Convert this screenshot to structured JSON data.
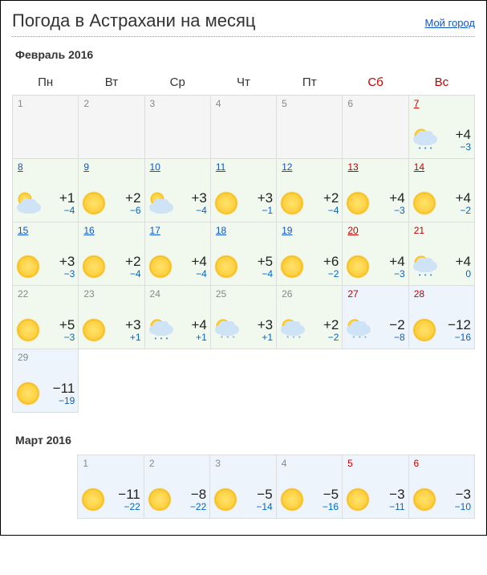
{
  "header": {
    "title": "Погода в Астрахани на месяц",
    "my_city": "Мой город"
  },
  "weekdays": [
    "Пн",
    "Вт",
    "Ср",
    "Чт",
    "Пт",
    "Сб",
    "Вс"
  ],
  "months": [
    {
      "title": "Февраль 2016",
      "leading_blanks": 0,
      "days": [
        {
          "d": "1",
          "empty": true
        },
        {
          "d": "2",
          "empty": true
        },
        {
          "d": "3",
          "empty": true
        },
        {
          "d": "4",
          "empty": true
        },
        {
          "d": "5",
          "empty": true
        },
        {
          "d": "6",
          "empty": true
        },
        {
          "d": "7",
          "link": true,
          "weekend": true,
          "bg": "green",
          "icon": "rain",
          "hi": "+4",
          "lo": "−3"
        },
        {
          "d": "8",
          "link": true,
          "bg": "green",
          "icon": "partly",
          "hi": "+1",
          "lo": "−4"
        },
        {
          "d": "9",
          "link": true,
          "bg": "green",
          "icon": "sun",
          "hi": "+2",
          "lo": "−6"
        },
        {
          "d": "10",
          "link": true,
          "bg": "green",
          "icon": "partly",
          "hi": "+3",
          "lo": "−4"
        },
        {
          "d": "11",
          "link": true,
          "bg": "green",
          "icon": "sun",
          "hi": "+3",
          "lo": "−1"
        },
        {
          "d": "12",
          "link": true,
          "bg": "green",
          "icon": "sun",
          "hi": "+2",
          "lo": "−4"
        },
        {
          "d": "13",
          "link": true,
          "weekend": true,
          "bg": "green",
          "icon": "sun",
          "hi": "+4",
          "lo": "−3"
        },
        {
          "d": "14",
          "link": true,
          "weekend": true,
          "bg": "green",
          "icon": "sun",
          "hi": "+4",
          "lo": "−2"
        },
        {
          "d": "15",
          "link": true,
          "bg": "green",
          "icon": "sun",
          "hi": "+3",
          "lo": "−3"
        },
        {
          "d": "16",
          "link": true,
          "bg": "green",
          "icon": "sun",
          "hi": "+2",
          "lo": "−4"
        },
        {
          "d": "17",
          "link": true,
          "bg": "green",
          "icon": "sun",
          "hi": "+4",
          "lo": "−4"
        },
        {
          "d": "18",
          "link": true,
          "bg": "green",
          "icon": "sun",
          "hi": "+5",
          "lo": "−4"
        },
        {
          "d": "19",
          "link": true,
          "bg": "green",
          "icon": "sun",
          "hi": "+6",
          "lo": "−2"
        },
        {
          "d": "20",
          "link": true,
          "weekend": true,
          "bg": "green",
          "icon": "sun",
          "hi": "+4",
          "lo": "−3"
        },
        {
          "d": "21",
          "weekend": true,
          "bg": "green",
          "icon": "rain",
          "hi": "+4",
          "lo": "0"
        },
        {
          "d": "22",
          "bg": "green",
          "icon": "sun",
          "hi": "+5",
          "lo": "−3"
        },
        {
          "d": "23",
          "bg": "green",
          "icon": "sun",
          "hi": "+3",
          "lo": "+1"
        },
        {
          "d": "24",
          "bg": "green",
          "icon": "rain",
          "hi": "+4",
          "lo": "+1"
        },
        {
          "d": "25",
          "bg": "green",
          "icon": "snow",
          "hi": "+3",
          "lo": "+1"
        },
        {
          "d": "26",
          "bg": "green",
          "icon": "snow",
          "hi": "+2",
          "lo": "−2"
        },
        {
          "d": "27",
          "weekend": true,
          "bg": "blue",
          "icon": "snow",
          "hi": "−2",
          "lo": "−8"
        },
        {
          "d": "28",
          "weekend": true,
          "bg": "blue",
          "icon": "sun",
          "hi": "−12",
          "lo": "−16"
        },
        {
          "d": "29",
          "bg": "blue",
          "icon": "sun",
          "hi": "−11",
          "lo": "−19"
        }
      ]
    },
    {
      "title": "Март 2016",
      "leading_blanks": 1,
      "noheader_row": true,
      "days": [
        {
          "d": "1",
          "bg": "blue",
          "icon": "sun",
          "hi": "−11",
          "lo": "−22"
        },
        {
          "d": "2",
          "bg": "blue",
          "icon": "sun",
          "hi": "−8",
          "lo": "−22"
        },
        {
          "d": "3",
          "bg": "blue",
          "icon": "sun",
          "hi": "−5",
          "lo": "−14"
        },
        {
          "d": "4",
          "bg": "blue",
          "icon": "sun",
          "hi": "−5",
          "lo": "−16"
        },
        {
          "d": "5",
          "weekend": true,
          "bg": "blue",
          "icon": "sun",
          "hi": "−3",
          "lo": "−11"
        },
        {
          "d": "6",
          "weekend": true,
          "bg": "blue",
          "icon": "sun",
          "hi": "−3",
          "lo": "−10"
        }
      ]
    }
  ]
}
